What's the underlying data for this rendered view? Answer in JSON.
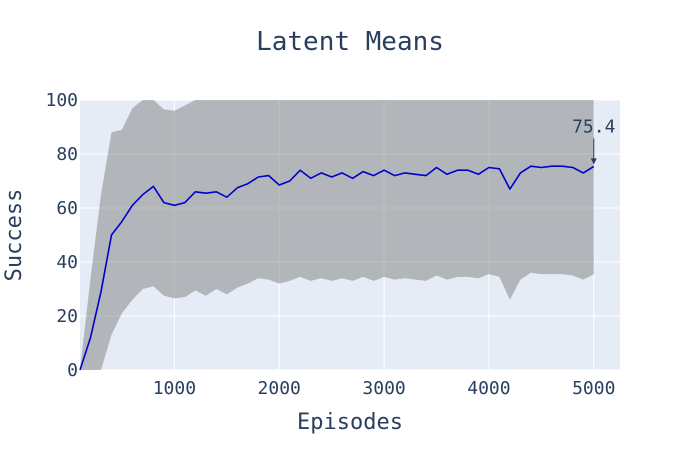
{
  "chart_data": {
    "type": "line",
    "title": "Latent Means",
    "xlabel": "Episodes",
    "ylabel": "Success",
    "xlim": [
      100,
      5250
    ],
    "ylim": [
      0,
      100
    ],
    "x_ticks": [
      1000,
      2000,
      3000,
      4000,
      5000
    ],
    "y_ticks": [
      0,
      20,
      40,
      60,
      80,
      100
    ],
    "grid": true,
    "colors": {
      "plot_background": "#e5ecf6",
      "grid": "#ffffff",
      "line": "#0000cd",
      "band": "#808080"
    },
    "series": [
      {
        "x": [
          100,
          200,
          300,
          400,
          500,
          600,
          700,
          800,
          900,
          1000,
          1100,
          1200,
          1300,
          1400,
          1500,
          1600,
          1700,
          1800,
          1900,
          2000,
          2100,
          2200,
          2300,
          2400,
          2500,
          2600,
          2700,
          2800,
          2900,
          3000,
          3100,
          3200,
          3300,
          3400,
          3500,
          3600,
          3700,
          3800,
          3900,
          4000,
          4100,
          4200,
          4300,
          4400,
          4500,
          4600,
          4700,
          4800,
          4900,
          5000
        ],
        "values": [
          0,
          12,
          29,
          50,
          55,
          61,
          65,
          68,
          62,
          61,
          62,
          66,
          65.5,
          66,
          64,
          67.5,
          69,
          71.5,
          72,
          68.5,
          70,
          74,
          71,
          73,
          71.5,
          73,
          71,
          73.5,
          72,
          74,
          72,
          73,
          72.5,
          72,
          75,
          72.5,
          74,
          74,
          72.5,
          75,
          74.5,
          67,
          73,
          75.5,
          75,
          75.5,
          75.5,
          75,
          73,
          75.4
        ],
        "lower": [
          0,
          0,
          0,
          13,
          21,
          26,
          30,
          31,
          27.5,
          26.5,
          27,
          29.5,
          27.5,
          30,
          28,
          30.5,
          32,
          34,
          33.5,
          32,
          33,
          34.5,
          33,
          34,
          33,
          34,
          33,
          34.5,
          33,
          34.5,
          33.5,
          34,
          33.5,
          33,
          35,
          33.5,
          34.5,
          34.5,
          34,
          35.5,
          34.5,
          26,
          33.5,
          36,
          35.5,
          35.5,
          35.5,
          35,
          33.5,
          35.5
        ],
        "upper": [
          0,
          34,
          65,
          88,
          89,
          97,
          100,
          100,
          96.5,
          96,
          98,
          100,
          100,
          100,
          100,
          100,
          100,
          100,
          100,
          100,
          100,
          100,
          100,
          100,
          100,
          100,
          100,
          100,
          100,
          100,
          100,
          100,
          100,
          100,
          100,
          100,
          100,
          100,
          100,
          100,
          100,
          100,
          100,
          100,
          100,
          100,
          100,
          100,
          100,
          100
        ]
      }
    ],
    "annotations": [
      {
        "text": "75.4",
        "x": 5000,
        "y": 75.4,
        "arrow": true
      }
    ]
  }
}
